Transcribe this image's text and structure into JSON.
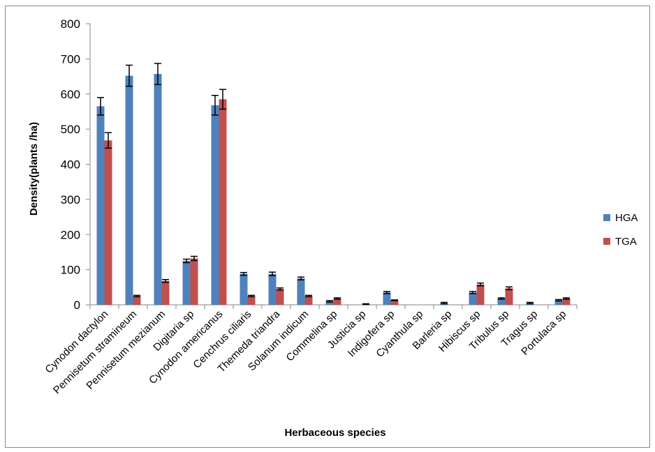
{
  "chart_data": {
    "type": "bar",
    "title": "",
    "xlabel": "Herbaceous species",
    "ylabel": "Density(plants /ha)",
    "ylim": [
      0,
      800
    ],
    "yticks": [
      0,
      100,
      200,
      300,
      400,
      500,
      600,
      700,
      800
    ],
    "grid": false,
    "legend_position": "right",
    "error_bars": true,
    "categories": [
      "Cynodon dactylon",
      "Pennisetum stramineum",
      "Pennisetum mezianum",
      "Digitaria sp",
      "Cynodon americanus",
      "Cenchrus ciliaris",
      "Themeda triandra",
      "Solanum indicum",
      "Commelina sp",
      "Justicia sp",
      "Indigofera sp",
      "Cyanthula sp",
      "Barleria sp",
      "Hibiscus sp",
      "Tribulus sp",
      "Tragus sp",
      "Portulaca sp"
    ],
    "series": [
      {
        "name": "HGA",
        "color": "#4f81bd",
        "values": [
          565,
          652,
          657,
          125,
          568,
          88,
          88,
          75,
          10,
          0,
          35,
          0,
          5,
          35,
          18,
          5,
          13
        ],
        "errors": [
          25,
          30,
          30,
          5,
          28,
          4,
          5,
          4,
          2,
          0,
          3,
          0,
          2,
          3,
          2,
          2,
          2
        ]
      },
      {
        "name": "TGA",
        "color": "#c0504d",
        "values": [
          468,
          25,
          68,
          132,
          585,
          25,
          45,
          25,
          18,
          2,
          13,
          0,
          0,
          58,
          47,
          0,
          18
        ],
        "errors": [
          22,
          2,
          4,
          6,
          28,
          2,
          3,
          2,
          2,
          1,
          1,
          0,
          0,
          4,
          4,
          0,
          2
        ]
      }
    ]
  }
}
